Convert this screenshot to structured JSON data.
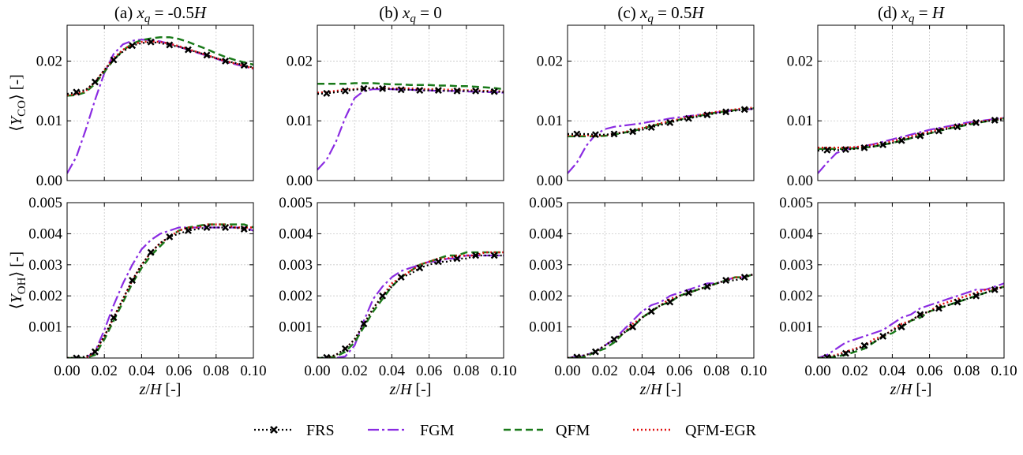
{
  "chart_data": {
    "type": "line",
    "x": [
      0.0,
      0.005,
      0.01,
      0.015,
      0.02,
      0.025,
      0.03,
      0.035,
      0.04,
      0.045,
      0.05,
      0.055,
      0.06,
      0.065,
      0.07,
      0.075,
      0.08,
      0.085,
      0.09,
      0.095,
      0.1
    ],
    "xlim": [
      0.0,
      0.1
    ],
    "xticks": [
      0.0,
      0.02,
      0.04,
      0.06,
      0.08,
      0.1
    ],
    "xtick_labels": [
      "0.00",
      "0.02",
      "0.04",
      "0.06",
      "0.08",
      "0.10"
    ],
    "xlabel": "z/H [-]",
    "grid": true,
    "legend": [
      {
        "key": "FRS",
        "label": "FRS",
        "color": "#000000"
      },
      {
        "key": "FGM",
        "label": "FGM",
        "color": "#8a2be2"
      },
      {
        "key": "QFM",
        "label": "QFM",
        "color": "#1a7a1a"
      },
      {
        "key": "QFM-EGR",
        "label": "QFM-EGR",
        "color": "#e01010"
      }
    ],
    "rows": [
      {
        "ylabel": "⟨YCO⟩ [-]",
        "ylabel_parts": {
          "open": "⟨",
          "var": "Y",
          "sub": "CO",
          "close": "⟩ [-]"
        },
        "ylim": [
          0.0,
          0.026
        ],
        "yticks": [
          0.0,
          0.01,
          0.02
        ],
        "ytick_labels": [
          "0.00",
          "0.01",
          "0.02"
        ]
      },
      {
        "ylabel": "⟨YOH⟩ [-]",
        "ylabel_parts": {
          "open": "⟨",
          "var": "Y",
          "sub": "OH",
          "close": "⟩ [-]"
        },
        "ylim": [
          0.0,
          0.005
        ],
        "yticks": [
          0.001,
          0.002,
          0.003,
          0.004,
          0.005
        ],
        "ytick_labels": [
          "0.001",
          "0.002",
          "0.003",
          "0.004",
          "0.005"
        ]
      }
    ],
    "columns": [
      {
        "title": "(a) xq = -0.5H",
        "title_parts": {
          "prefix": "(a) ",
          "var": "x",
          "sub": "q",
          "eq": " = -0.5",
          "suffix": "H"
        }
      },
      {
        "title": "(b) xq = 0",
        "title_parts": {
          "prefix": "(b) ",
          "var": "x",
          "sub": "q",
          "eq": " = 0",
          "suffix": ""
        }
      },
      {
        "title": "(c) xq = 0.5H",
        "title_parts": {
          "prefix": "(c) ",
          "var": "x",
          "sub": "q",
          "eq": " = 0.5",
          "suffix": "H"
        }
      },
      {
        "title": "(d) xq = H",
        "title_parts": {
          "prefix": "(d) ",
          "var": "x",
          "sub": "q",
          "eq": " = ",
          "suffix": "H"
        }
      }
    ],
    "panels": [
      {
        "row": 0,
        "col": 0,
        "series": {
          "FRS": [
            0.0145,
            0.0148,
            0.0152,
            0.0165,
            0.0185,
            0.0202,
            0.0216,
            0.0226,
            0.023,
            0.0232,
            0.023,
            0.0227,
            0.0224,
            0.0219,
            0.0215,
            0.021,
            0.0205,
            0.02,
            0.0197,
            0.0193,
            0.0189
          ],
          "FGM": [
            0.0012,
            0.004,
            0.0085,
            0.0135,
            0.018,
            0.0212,
            0.0228,
            0.0234,
            0.0236,
            0.0235,
            0.0233,
            0.0229,
            0.0224,
            0.0219,
            0.0214,
            0.0209,
            0.0204,
            0.0199,
            0.0195,
            0.0191,
            0.0187
          ],
          "QFM": [
            0.0142,
            0.0143,
            0.0148,
            0.0162,
            0.0182,
            0.0202,
            0.0218,
            0.0229,
            0.0235,
            0.0238,
            0.024,
            0.024,
            0.0237,
            0.0232,
            0.0226,
            0.022,
            0.0213,
            0.0207,
            0.0202,
            0.0198,
            0.0194
          ],
          "QFM-EGR": [
            0.0143,
            0.0145,
            0.015,
            0.0165,
            0.0185,
            0.0205,
            0.0219,
            0.0228,
            0.0232,
            0.0233,
            0.0232,
            0.0229,
            0.0225,
            0.022,
            0.0215,
            0.021,
            0.0205,
            0.02,
            0.0196,
            0.0192,
            0.0188
          ]
        }
      },
      {
        "row": 0,
        "col": 1,
        "series": {
          "FRS": [
            0.0145,
            0.0146,
            0.0148,
            0.015,
            0.0152,
            0.0154,
            0.0155,
            0.0154,
            0.0153,
            0.0152,
            0.0152,
            0.0151,
            0.0151,
            0.0151,
            0.015,
            0.015,
            0.015,
            0.015,
            0.0149,
            0.0149,
            0.0148
          ],
          "FGM": [
            0.0018,
            0.0035,
            0.0065,
            0.0105,
            0.0138,
            0.015,
            0.0153,
            0.0153,
            0.0153,
            0.0152,
            0.0152,
            0.0151,
            0.0151,
            0.015,
            0.015,
            0.015,
            0.0149,
            0.0149,
            0.0148,
            0.0148,
            0.0147
          ],
          "QFM": [
            0.0162,
            0.0162,
            0.0162,
            0.0162,
            0.0163,
            0.0163,
            0.0163,
            0.0162,
            0.0161,
            0.0161,
            0.016,
            0.016,
            0.016,
            0.0159,
            0.0159,
            0.0158,
            0.0158,
            0.0157,
            0.0156,
            0.0155,
            0.0153
          ],
          "QFM-EGR": [
            0.0147,
            0.0148,
            0.015,
            0.0152,
            0.0153,
            0.0154,
            0.0155,
            0.0155,
            0.0154,
            0.0154,
            0.0154,
            0.0153,
            0.0153,
            0.0153,
            0.0152,
            0.0152,
            0.0151,
            0.0151,
            0.015,
            0.015,
            0.0149
          ]
        }
      },
      {
        "row": 0,
        "col": 2,
        "series": {
          "FRS": [
            0.0078,
            0.0078,
            0.0078,
            0.0077,
            0.0077,
            0.0078,
            0.008,
            0.0082,
            0.0085,
            0.0089,
            0.0093,
            0.0097,
            0.0101,
            0.0104,
            0.0107,
            0.011,
            0.0113,
            0.0115,
            0.0117,
            0.0119,
            0.012
          ],
          "FGM": [
            0.0012,
            0.003,
            0.0058,
            0.0077,
            0.0086,
            0.009,
            0.0092,
            0.0094,
            0.0096,
            0.0099,
            0.0101,
            0.0104,
            0.0106,
            0.0108,
            0.011,
            0.0112,
            0.0114,
            0.0116,
            0.0118,
            0.0119,
            0.012
          ],
          "QFM": [
            0.0074,
            0.0074,
            0.0074,
            0.0074,
            0.0075,
            0.0077,
            0.008,
            0.0083,
            0.0087,
            0.0091,
            0.0095,
            0.0098,
            0.0102,
            0.0105,
            0.0108,
            0.0111,
            0.0114,
            0.0116,
            0.0118,
            0.012,
            0.0121
          ],
          "QFM-EGR": [
            0.0076,
            0.0076,
            0.0076,
            0.0075,
            0.0076,
            0.0078,
            0.0081,
            0.0084,
            0.0088,
            0.0092,
            0.0096,
            0.0099,
            0.0103,
            0.0106,
            0.0109,
            0.0112,
            0.0115,
            0.0117,
            0.0119,
            0.0121,
            0.0122
          ]
        }
      },
      {
        "row": 0,
        "col": 3,
        "series": {
          "FRS": [
            0.005,
            0.0051,
            0.0051,
            0.0052,
            0.0053,
            0.0055,
            0.0057,
            0.006,
            0.0063,
            0.0067,
            0.0071,
            0.0075,
            0.0079,
            0.0083,
            0.0087,
            0.009,
            0.0094,
            0.0097,
            0.0099,
            0.0101,
            0.0103
          ],
          "FGM": [
            0.0012,
            0.003,
            0.0046,
            0.0052,
            0.0055,
            0.0058,
            0.0061,
            0.0065,
            0.0069,
            0.0073,
            0.0077,
            0.0081,
            0.0085,
            0.0088,
            0.0091,
            0.0094,
            0.0097,
            0.0099,
            0.0101,
            0.0103,
            0.0105
          ],
          "QFM": [
            0.0053,
            0.0053,
            0.0053,
            0.0053,
            0.0054,
            0.0055,
            0.0057,
            0.006,
            0.0063,
            0.0067,
            0.0071,
            0.0075,
            0.0079,
            0.0083,
            0.0087,
            0.009,
            0.0093,
            0.0096,
            0.0099,
            0.0101,
            0.0104
          ],
          "QFM-EGR": [
            0.0055,
            0.0055,
            0.0055,
            0.0055,
            0.0056,
            0.0058,
            0.006,
            0.0063,
            0.0066,
            0.007,
            0.0074,
            0.0078,
            0.0082,
            0.0085,
            0.0089,
            0.0092,
            0.0095,
            0.0098,
            0.01,
            0.0102,
            0.0105
          ]
        }
      },
      {
        "row": 1,
        "col": 0,
        "series": {
          "FRS": [
            0.0,
            0.0,
            5e-05,
            0.0002,
            0.0007,
            0.0013,
            0.0019,
            0.0025,
            0.003,
            0.0034,
            0.0037,
            0.0039,
            0.004,
            0.0041,
            0.00415,
            0.0042,
            0.0042,
            0.0042,
            0.0042,
            0.00415,
            0.0041
          ],
          "FGM": [
            0.0,
            0.0,
            0.0,
            0.0002,
            0.0009,
            0.0017,
            0.0024,
            0.003,
            0.0035,
            0.0038,
            0.004,
            0.0041,
            0.0042,
            0.0042,
            0.0042,
            0.0042,
            0.0042,
            0.0042,
            0.0042,
            0.0042,
            0.0041
          ],
          "QFM": [
            0.0,
            0.0,
            0.0,
            0.0001,
            0.0006,
            0.0012,
            0.0018,
            0.0024,
            0.0029,
            0.0033,
            0.0036,
            0.0039,
            0.0041,
            0.0042,
            0.00425,
            0.0043,
            0.0043,
            0.0043,
            0.0043,
            0.0043,
            0.0042
          ],
          "QFM-EGR": [
            0.0,
            0.0,
            0.0,
            0.0002,
            0.0007,
            0.0013,
            0.0019,
            0.0025,
            0.003,
            0.0034,
            0.0037,
            0.0039,
            0.0041,
            0.0042,
            0.0042,
            0.0043,
            0.0043,
            0.0043,
            0.0042,
            0.0042,
            0.0042
          ]
        }
      },
      {
        "row": 1,
        "col": 1,
        "series": {
          "FRS": [
            0.0,
            2e-05,
            0.0001,
            0.0003,
            0.0006,
            0.0011,
            0.0016,
            0.002,
            0.0023,
            0.0026,
            0.0027,
            0.0029,
            0.003,
            0.0031,
            0.0031,
            0.0032,
            0.0032,
            0.0033,
            0.0033,
            0.0033,
            0.0033
          ],
          "FGM": [
            0.0,
            0.0,
            0.0,
            5e-05,
            0.0004,
            0.0012,
            0.0019,
            0.0023,
            0.0026,
            0.0028,
            0.0029,
            0.003,
            0.0031,
            0.0031,
            0.0032,
            0.0032,
            0.0033,
            0.0033,
            0.0033,
            0.0033,
            0.0033
          ],
          "QFM": [
            0.0,
            0.0,
            5e-05,
            0.0002,
            0.0005,
            0.001,
            0.0015,
            0.0019,
            0.0023,
            0.0026,
            0.0028,
            0.003,
            0.0031,
            0.0032,
            0.0033,
            0.0033,
            0.0034,
            0.0034,
            0.0034,
            0.0034,
            0.0034
          ],
          "QFM-EGR": [
            0.0,
            0.0,
            0.0001,
            0.0003,
            0.0006,
            0.0011,
            0.0016,
            0.002,
            0.0024,
            0.0026,
            0.0028,
            0.003,
            0.0031,
            0.0032,
            0.0032,
            0.0033,
            0.0033,
            0.0033,
            0.0034,
            0.0034,
            0.0034
          ]
        }
      },
      {
        "row": 1,
        "col": 2,
        "series": {
          "FRS": [
            0.0,
            3e-05,
            0.0001,
            0.0002,
            0.0004,
            0.0006,
            0.0008,
            0.001,
            0.0013,
            0.0015,
            0.0017,
            0.0018,
            0.002,
            0.0021,
            0.0022,
            0.0023,
            0.0024,
            0.0025,
            0.0025,
            0.0026,
            0.0027
          ],
          "FGM": [
            0.0,
            5e-05,
            0.0001,
            0.0002,
            0.0004,
            0.0006,
            0.0009,
            0.0012,
            0.0015,
            0.0017,
            0.0018,
            0.002,
            0.0021,
            0.0022,
            0.0023,
            0.0024,
            0.0024,
            0.0025,
            0.0026,
            0.0026,
            0.0027
          ],
          "QFM": [
            0.0,
            0.0,
            5e-05,
            0.0002,
            0.0003,
            0.0005,
            0.0008,
            0.001,
            0.0013,
            0.0015,
            0.0017,
            0.0018,
            0.002,
            0.0021,
            0.0022,
            0.0023,
            0.0024,
            0.0025,
            0.0026,
            0.0026,
            0.0027
          ],
          "QFM-EGR": [
            0.0,
            3e-05,
            0.0001,
            0.0002,
            0.0004,
            0.0006,
            0.0008,
            0.0011,
            0.0013,
            0.0015,
            0.0017,
            0.0019,
            0.002,
            0.0021,
            0.0022,
            0.0023,
            0.0024,
            0.0025,
            0.0026,
            0.0026,
            0.0027
          ]
        }
      },
      {
        "row": 1,
        "col": 3,
        "series": {
          "FRS": [
            0.0,
            2e-05,
            7e-05,
            0.00015,
            0.00025,
            0.0004,
            0.0005,
            0.0007,
            0.0009,
            0.001,
            0.0012,
            0.0014,
            0.0015,
            0.0016,
            0.0017,
            0.0018,
            0.0019,
            0.002,
            0.0021,
            0.0022,
            0.0023
          ],
          "FGM": [
            0.0,
            0.0001,
            0.0003,
            0.0005,
            0.0006,
            0.0007,
            0.0008,
            0.0009,
            0.0011,
            0.0013,
            0.0014,
            0.0016,
            0.0017,
            0.0018,
            0.0019,
            0.002,
            0.0021,
            0.0022,
            0.0022,
            0.0023,
            0.0024
          ],
          "QFM": [
            0.0,
            0.0,
            5e-05,
            0.0001,
            0.0002,
            0.0003,
            0.0005,
            0.0007,
            0.0008,
            0.001,
            0.0012,
            0.0013,
            0.0015,
            0.0016,
            0.0017,
            0.0018,
            0.0019,
            0.002,
            0.0021,
            0.0022,
            0.0023
          ],
          "QFM-EGR": [
            0.0,
            3e-05,
            0.0001,
            0.0002,
            0.0003,
            0.0004,
            0.0006,
            0.0007,
            0.0009,
            0.0011,
            0.0012,
            0.0014,
            0.0015,
            0.0017,
            0.0018,
            0.0019,
            0.002,
            0.0021,
            0.0022,
            0.0022,
            0.0023
          ]
        }
      }
    ]
  }
}
